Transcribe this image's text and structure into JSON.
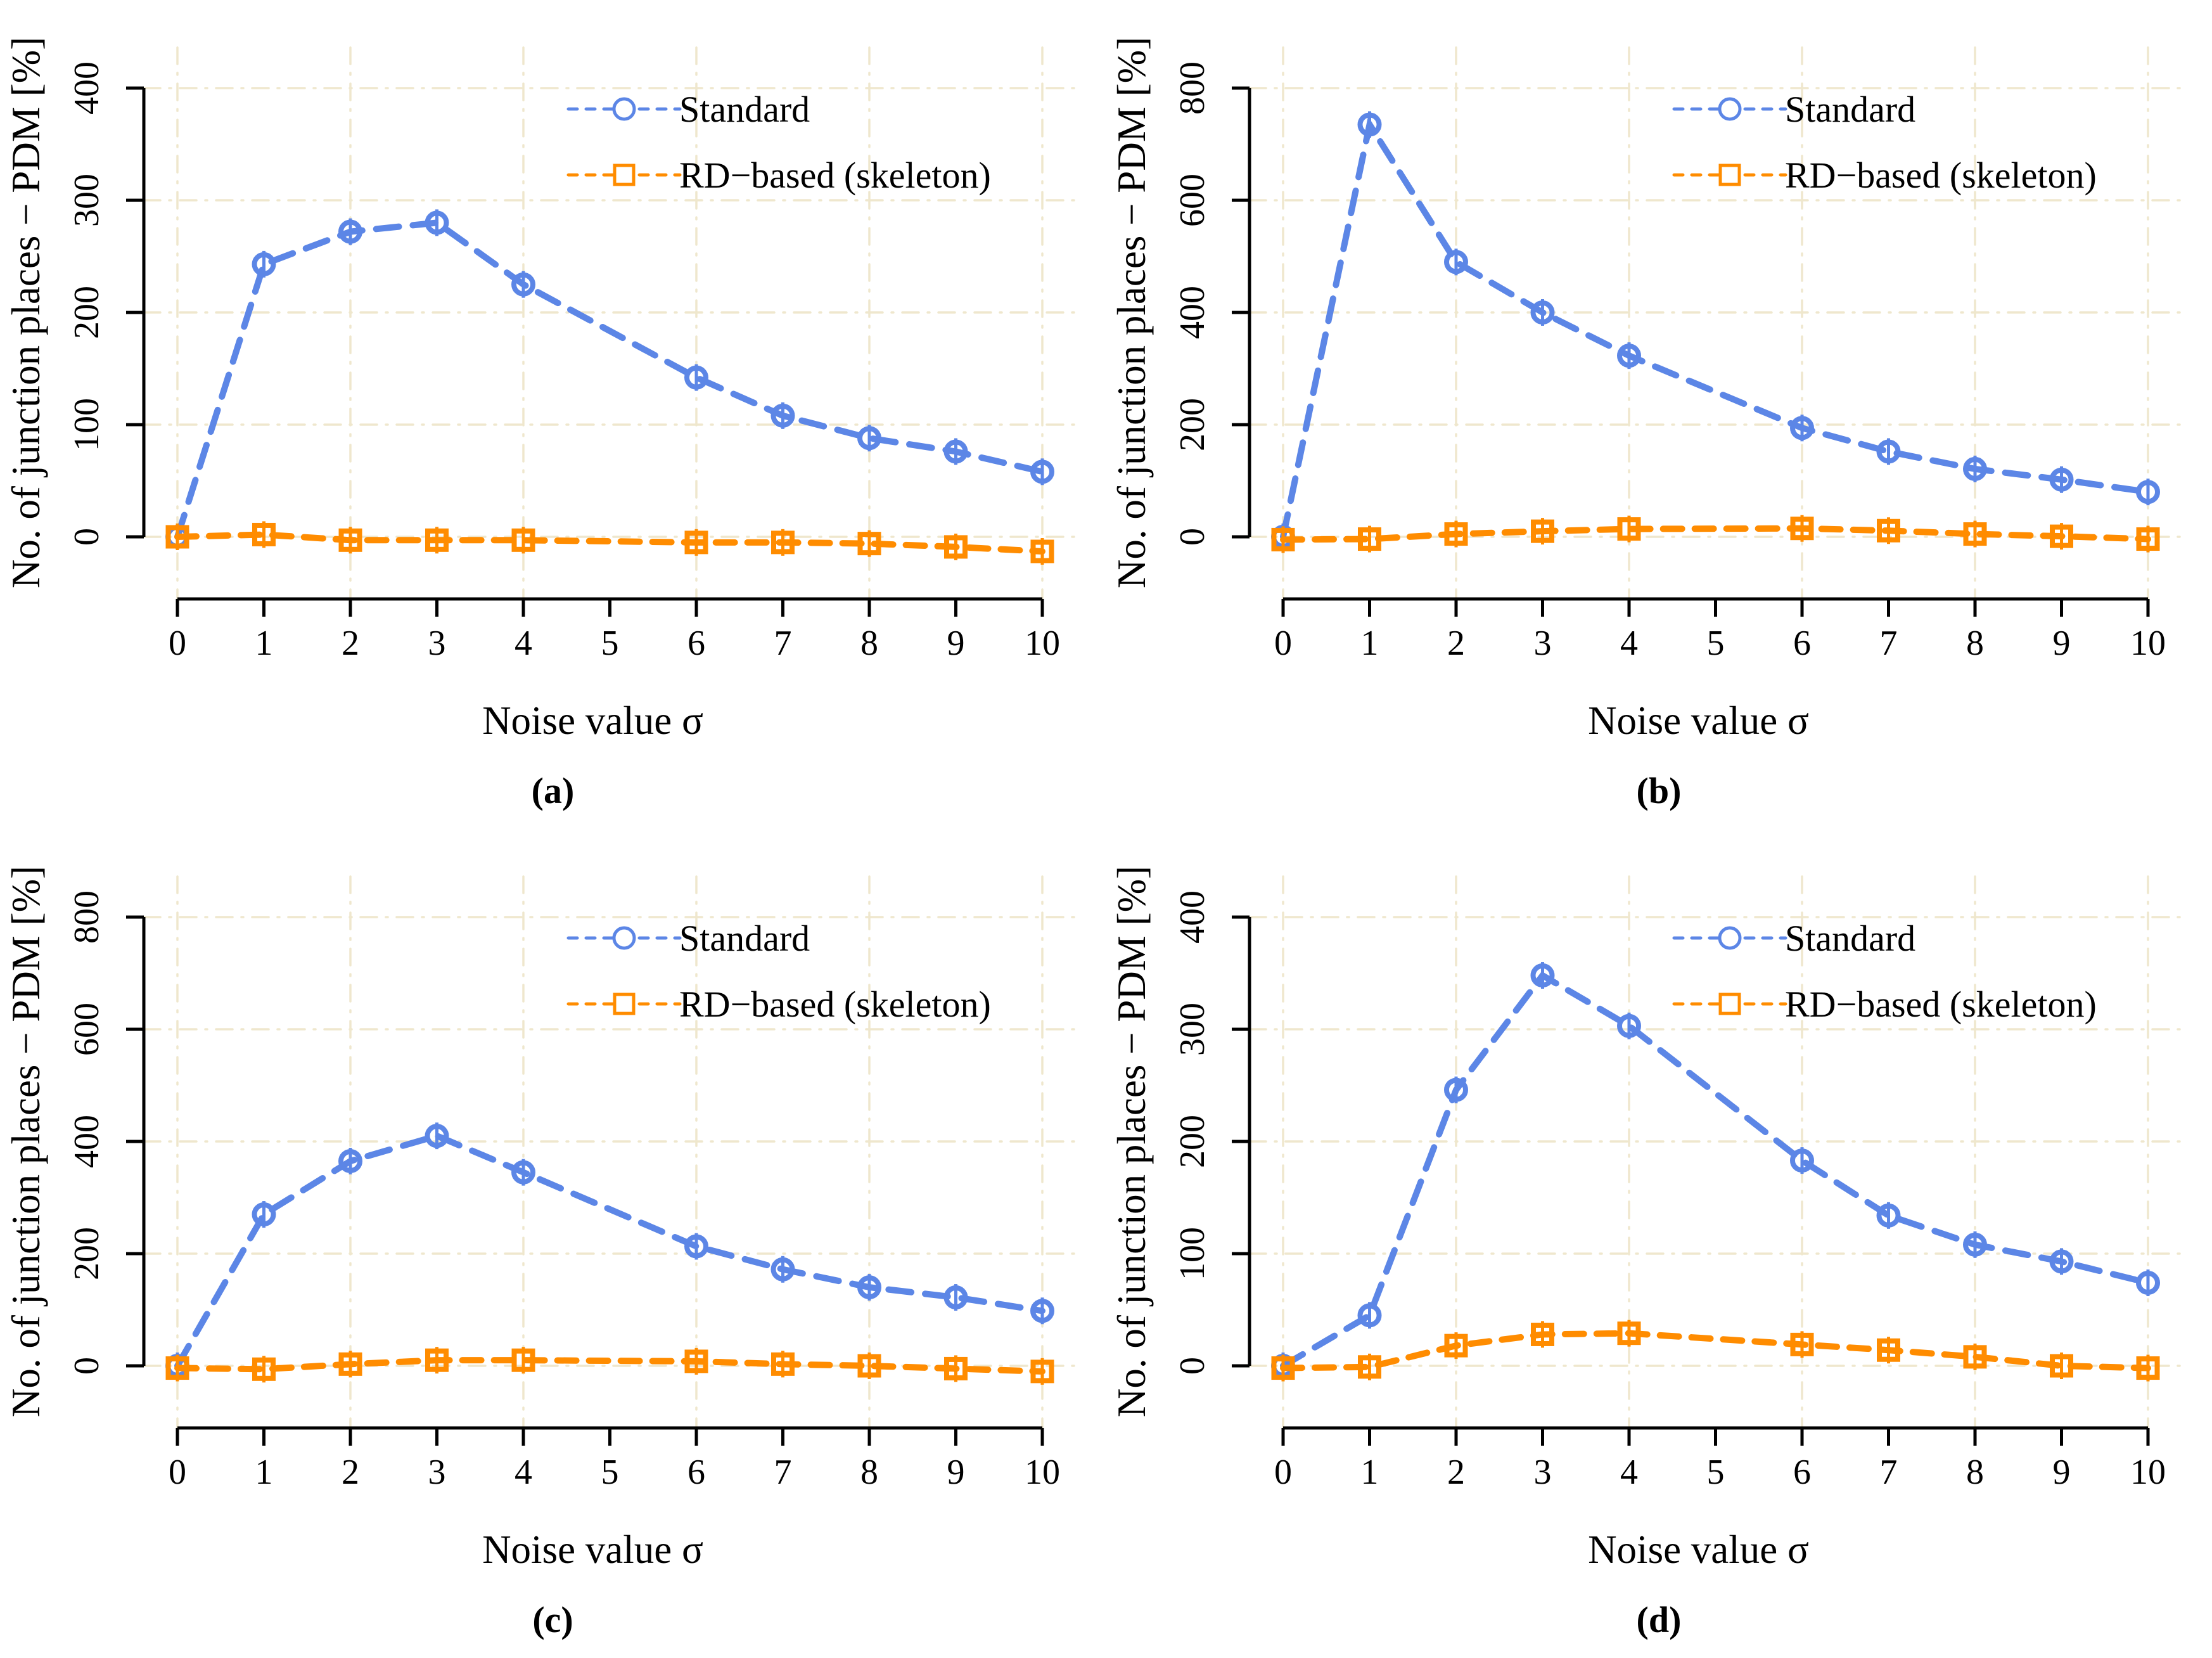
{
  "figure": {
    "background": "#ffffff",
    "axis_color": "#000000",
    "grid_color": "#EFE7CD",
    "series_colors": {
      "standard": "#5C86E6",
      "rd_based": "#FF8C00"
    },
    "xlabel": "Noise value σ",
    "ylabel": "No. of junction places − PDM [%]",
    "legend_entries": [
      "Standard",
      "RD−based (skeleton)"
    ]
  },
  "chart_data": [
    {
      "key": "a",
      "panel_label": "(a)",
      "type": "line",
      "title": "",
      "xlabel": "Noise value σ",
      "ylabel": "No. of junction places − PDM [%]",
      "xlim": [
        0,
        10
      ],
      "ylim": [
        0,
        400
      ],
      "xticks": [
        0,
        1,
        2,
        3,
        4,
        5,
        6,
        7,
        8,
        9,
        10
      ],
      "yticks": [
        0,
        100,
        200,
        300,
        400
      ],
      "grid_x": [
        0,
        2,
        4,
        6,
        8,
        10
      ],
      "grid": true,
      "legend_position": "top-right",
      "x": [
        0,
        1,
        2,
        3,
        4,
        6,
        7,
        8,
        9,
        10
      ],
      "series": [
        {
          "name": "Standard",
          "color": "#5C86E6",
          "marker": "circle",
          "dash": [
            36,
            22
          ],
          "values": [
            0,
            243,
            272,
            280,
            225,
            142,
            108,
            88,
            76,
            58
          ]
        },
        {
          "name": "RD−based (skeleton)",
          "color": "#FF8C00",
          "marker": "square",
          "dash": [
            30,
            20
          ],
          "values": [
            0,
            2,
            -3,
            -3,
            -3,
            -5,
            -5,
            -6,
            -9,
            -13
          ]
        }
      ]
    },
    {
      "key": "b",
      "panel_label": "(b)",
      "type": "line",
      "title": "",
      "xlabel": "Noise value σ",
      "ylabel": "No. of junction places − PDM [%]",
      "xlim": [
        0,
        10
      ],
      "ylim": [
        0,
        800
      ],
      "xticks": [
        0,
        1,
        2,
        3,
        4,
        5,
        6,
        7,
        8,
        9,
        10
      ],
      "yticks": [
        0,
        200,
        400,
        600,
        800
      ],
      "grid_x": [
        0,
        2,
        4,
        6,
        8,
        10
      ],
      "grid": true,
      "legend_position": "top-right",
      "x": [
        0,
        1,
        2,
        3,
        4,
        6,
        7,
        8,
        9,
        10
      ],
      "series": [
        {
          "name": "Standard",
          "color": "#5C86E6",
          "marker": "circle",
          "dash": [
            36,
            22
          ],
          "values": [
            0,
            735,
            490,
            400,
            323,
            194,
            152,
            121,
            102,
            80
          ]
        },
        {
          "name": "RD−based (skeleton)",
          "color": "#FF8C00",
          "marker": "square",
          "dash": [
            30,
            20
          ],
          "values": [
            -5,
            -4,
            5,
            10,
            14,
            15,
            11,
            5,
            1,
            -4
          ]
        }
      ]
    },
    {
      "key": "c",
      "panel_label": "(c)",
      "type": "line",
      "title": "",
      "xlabel": "Noise value σ",
      "ylabel": "No. of junction places − PDM [%]",
      "xlim": [
        0,
        10
      ],
      "ylim": [
        0,
        800
      ],
      "xticks": [
        0,
        1,
        2,
        3,
        4,
        5,
        6,
        7,
        8,
        9,
        10
      ],
      "yticks": [
        0,
        200,
        400,
        600,
        800
      ],
      "grid_x": [
        0,
        2,
        4,
        6,
        8,
        10
      ],
      "grid": true,
      "legend_position": "top-right",
      "x": [
        0,
        1,
        2,
        3,
        4,
        6,
        7,
        8,
        9,
        10
      ],
      "series": [
        {
          "name": "Standard",
          "color": "#5C86E6",
          "marker": "circle",
          "dash": [
            36,
            22
          ],
          "values": [
            0,
            270,
            365,
            410,
            345,
            213,
            172,
            140,
            122,
            98
          ]
        },
        {
          "name": "RD−based (skeleton)",
          "color": "#FF8C00",
          "marker": "square",
          "dash": [
            30,
            20
          ],
          "values": [
            -4,
            -6,
            3,
            10,
            10,
            8,
            3,
            0,
            -5,
            -10
          ]
        }
      ]
    },
    {
      "key": "d",
      "panel_label": "(d)",
      "type": "line",
      "title": "",
      "xlabel": "Noise value σ",
      "ylabel": "No. of junction places − PDM [%]",
      "xlim": [
        0,
        10
      ],
      "ylim": [
        0,
        400
      ],
      "xticks": [
        0,
        1,
        2,
        3,
        4,
        5,
        6,
        7,
        8,
        9,
        10
      ],
      "yticks": [
        0,
        100,
        200,
        300,
        400
      ],
      "grid_x": [
        0,
        2,
        4,
        6,
        8,
        10
      ],
      "grid": true,
      "legend_position": "top-right",
      "x": [
        0,
        1,
        2,
        3,
        4,
        6,
        7,
        8,
        9,
        10
      ],
      "series": [
        {
          "name": "Standard",
          "color": "#5C86E6",
          "marker": "circle",
          "dash": [
            36,
            22
          ],
          "values": [
            0,
            45,
            246,
            348,
            303,
            183,
            134,
            108,
            93,
            74
          ]
        },
        {
          "name": "RD−based (skeleton)",
          "color": "#FF8C00",
          "marker": "square",
          "dash": [
            30,
            20
          ],
          "values": [
            -2,
            -1,
            18,
            28,
            29,
            19,
            14,
            8,
            0,
            -2
          ]
        }
      ]
    }
  ]
}
